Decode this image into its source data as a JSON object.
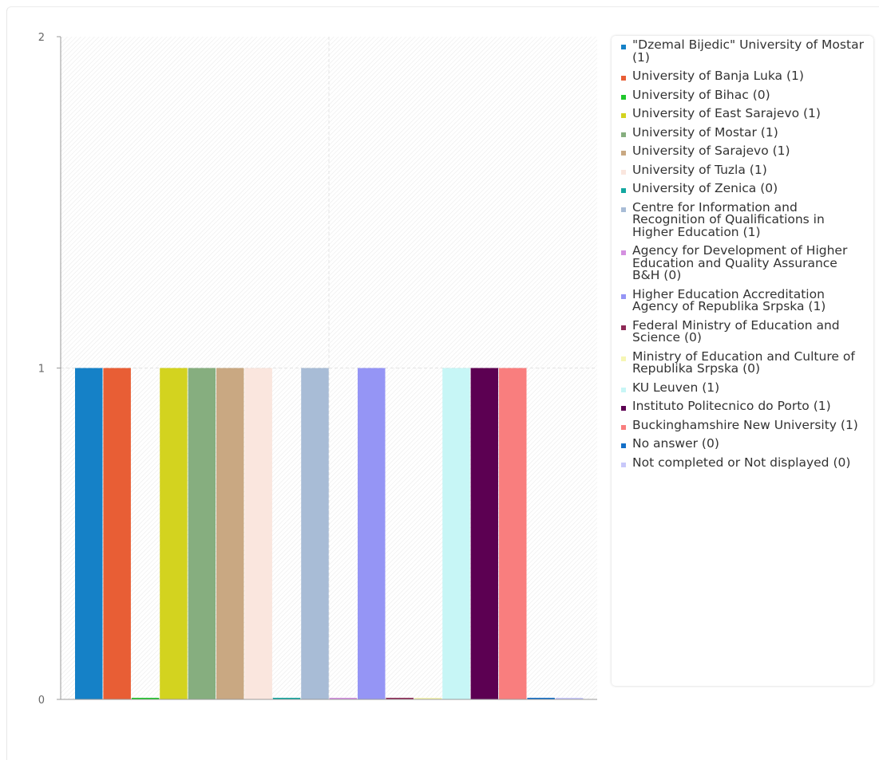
{
  "chart_data": {
    "type": "bar",
    "title": "",
    "xlabel": "",
    "ylabel": "",
    "ylim": [
      0,
      2
    ],
    "yticks": [
      "0",
      "1",
      "2"
    ],
    "grid": true,
    "legend_position": "right",
    "series": [
      {
        "label": "\"Dzemal Bijedic\" University of Mostar (1)",
        "value": 1,
        "color": "#1581c7"
      },
      {
        "label": "University of Banja Luka (1)",
        "value": 1,
        "color": "#e85e35"
      },
      {
        "label": "University of Bihac (0)",
        "value": 0,
        "color": "#1fc72b"
      },
      {
        "label": "University of East Sarajevo (1)",
        "value": 1,
        "color": "#d3d31f"
      },
      {
        "label": "University of Mostar (1)",
        "value": 1,
        "color": "#86ae7f"
      },
      {
        "label": "University of Sarajevo (1)",
        "value": 1,
        "color": "#c9a882"
      },
      {
        "label": "University of Tuzla (1)",
        "value": 1,
        "color": "#fae6de"
      },
      {
        "label": "University of Zenica (0)",
        "value": 0,
        "color": "#13a7a0"
      },
      {
        "label": "Centre for Information and Recognition of Qualifications in Higher Education (1)",
        "value": 1,
        "color": "#a8bcd6"
      },
      {
        "label": "Agency for Development of Higher Education and Quality Assurance B&H (0)",
        "value": 0,
        "color": "#d490e0"
      },
      {
        "label": "Higher Education Accreditation Agency of Republika Srpska (1)",
        "value": 1,
        "color": "#9595f5"
      },
      {
        "label": "Federal Ministry of Education and Science (0)",
        "value": 0,
        "color": "#8e2a57"
      },
      {
        "label": "Ministry of Education and Culture of Republika Srpska (0)",
        "value": 0,
        "color": "#f6f6b4"
      },
      {
        "label": "KU Leuven (1)",
        "value": 1,
        "color": "#c7f6f6"
      },
      {
        "label": "Instituto Politecnico do Porto (1)",
        "value": 1,
        "color": "#5c0052"
      },
      {
        "label": "Buckinghamshire New University (1)",
        "value": 1,
        "color": "#f97e7e"
      },
      {
        "label": "No answer (0)",
        "value": 0,
        "color": "#136fc8"
      },
      {
        "label": "Not completed or Not displayed (0)",
        "value": 0,
        "color": "#c8c8fa"
      }
    ]
  }
}
